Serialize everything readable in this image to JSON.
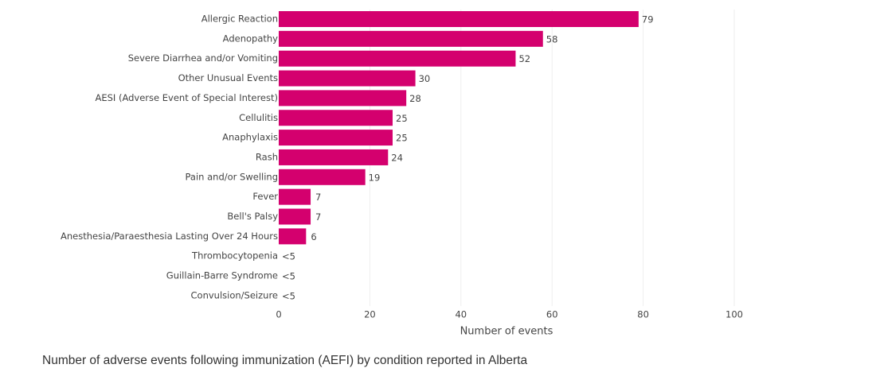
{
  "chart_data": {
    "type": "bar",
    "orientation": "horizontal",
    "title": "Number of adverse events following immunization (AEFI) by condition reported in Alberta",
    "xlabel": "Number of events",
    "ylabel": "",
    "xlim": [
      0,
      100
    ],
    "x_ticks": [
      0,
      20,
      40,
      60,
      80,
      100
    ],
    "grid": true,
    "bar_color": "#d4006e",
    "grid_color": "#eeeeee",
    "categories": [
      "Allergic Reaction",
      "Adenopathy",
      "Severe Diarrhea and/or Vomiting",
      "Other Unusual Events",
      "AESI (Adverse Event of Special Interest)",
      "Cellulitis",
      "Anaphylaxis",
      "Rash",
      "Pain and/or Swelling",
      "Fever",
      "Bell's Palsy",
      "Anesthesia/Paraesthesia Lasting Over 24 Hours",
      "Thrombocytopenia",
      "Guillain-Barre Syndrome",
      "Convulsion/Seizure"
    ],
    "values": [
      79,
      58,
      52,
      30,
      28,
      25,
      25,
      24,
      19,
      7,
      7,
      6,
      null,
      null,
      null
    ],
    "data_labels": [
      "79",
      "58",
      "52",
      "30",
      "28",
      "25",
      "25",
      "24",
      "19",
      "7",
      "7",
      "6",
      "<5",
      "<5",
      "<5"
    ]
  }
}
